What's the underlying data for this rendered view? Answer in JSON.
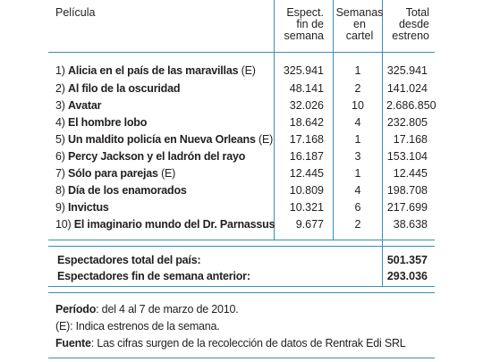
{
  "header": {
    "film": "Película",
    "weekend": [
      "Espect.",
      "fin de",
      "semana"
    ],
    "weeks": [
      "Semanas",
      "en",
      "cartel"
    ],
    "total": [
      "Total",
      "desde",
      "estreno"
    ]
  },
  "rows": [
    {
      "rank": "1)",
      "title": "Alicia en el país de las maravillas",
      "suffix": " (E)",
      "weekend": "325.941",
      "weeks": "1",
      "total": "325.941"
    },
    {
      "rank": "2)",
      "title": "Al filo de la oscuridad",
      "suffix": "",
      "weekend": "48.141",
      "weeks": "2",
      "total": "141.024"
    },
    {
      "rank": "3)",
      "title": "Avatar",
      "suffix": "",
      "weekend": "32.026",
      "weeks": "10",
      "total": "2.686.850"
    },
    {
      "rank": "4)",
      "title": "El hombre lobo",
      "suffix": "",
      "weekend": "18.642",
      "weeks": "4",
      "total": "232.805"
    },
    {
      "rank": "5)",
      "title": "Un maldito policía en Nueva Orleans",
      "suffix": " (E)",
      "weekend": "17.168",
      "weeks": "1",
      "total": "17.168"
    },
    {
      "rank": "6)",
      "title": "Percy Jackson y el ladrón del rayo",
      "suffix": "",
      "weekend": "16.187",
      "weeks": "3",
      "total": "153.104"
    },
    {
      "rank": "7)",
      "title": "Sólo para parejas",
      "suffix": " (E)",
      "weekend": "12.445",
      "weeks": "1",
      "total": "12.445"
    },
    {
      "rank": "8)",
      "title": "Día de los enamorados",
      "suffix": "",
      "weekend": "10.809",
      "weeks": "4",
      "total": "198.708"
    },
    {
      "rank": "9)",
      "title": "Invictus",
      "suffix": "",
      "weekend": "10.321",
      "weeks": "6",
      "total": "217.699"
    },
    {
      "rank": "10)",
      "title": "El imaginario mundo del Dr. Parnassus",
      "suffix": "",
      "weekend": "9.677",
      "weeks": "2",
      "total": "38.638"
    }
  ],
  "totals": {
    "country_label": "Espectadores total del país:",
    "country_value": "501.357",
    "previous_label": "Espectadores fin de semana anterior:",
    "previous_value": "293.036"
  },
  "footer": {
    "period_label": "Período",
    "period_text": ": del 4 al 7 de marzo de 2010.",
    "premiere_note": "(E): Indica estrenos de la semana.",
    "source_label": "Fuente",
    "source_text": ": Las cifras surgen de la recolección de datos de Rentrak Edi SRL"
  },
  "colors": {
    "rule": "#3a8fb7",
    "text": "#231f20"
  }
}
